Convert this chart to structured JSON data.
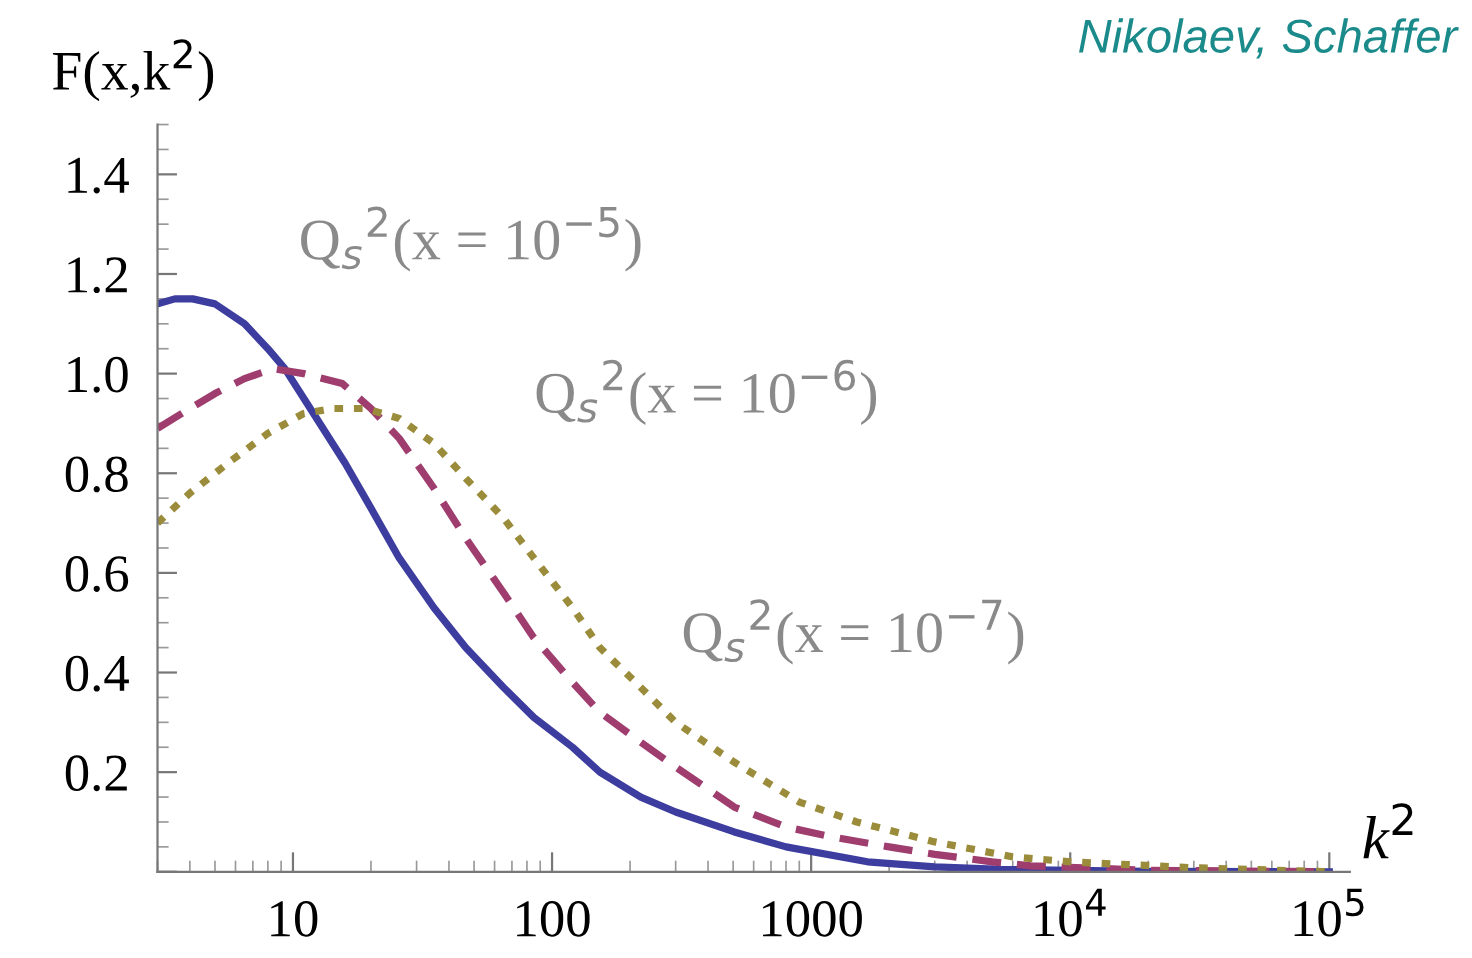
{
  "chart_data": {
    "type": "line",
    "ylabel": "F(x,k$^{2}$)",
    "xlabel": "k$^{2}$",
    "log": "x",
    "grid": false,
    "legend": false,
    "marker": "none",
    "xlim": [
      3,
      120000
    ],
    "ylim": [
      0,
      1.5
    ],
    "xticks": [
      10,
      100,
      1000,
      {
        "value": 10000,
        "label": "10$^{4}$"
      },
      {
        "value": 100000,
        "label": "10$^{5}$"
      }
    ],
    "yticks": [
      {
        "value": 0,
        "label": null
      },
      0.2,
      0.4,
      0.6,
      0.8,
      {
        "value": 1.0,
        "label": "1.0"
      },
      1.2,
      1.4
    ],
    "series": [
      {
        "color": "#3d3da0",
        "line_style": "solid",
        "x": [
          3,
          3.5,
          4.1,
          5,
          6.5,
          8,
          9.3,
          12,
          15.9,
          20,
          25.7,
          35,
          46.4,
          65,
          85,
          120,
          153,
          220,
          300,
          505,
          800,
          1650,
          3000,
          5400,
          20000,
          100000
        ],
        "values": [
          1.14,
          1.15,
          1.15,
          1.14,
          1.1,
          1.05,
          1.01,
          0.92,
          0.82,
          0.73,
          0.63,
          0.53,
          0.45,
          0.37,
          0.31,
          0.25,
          0.2,
          0.15,
          0.12,
          0.08,
          0.05,
          0.02,
          0.01,
          0.005,
          0.001,
          0
        ]
      },
      {
        "color": "#9e3d6e",
        "line_style": "dashed",
        "x": [
          3,
          4,
          5,
          6.5,
          8.4,
          11,
          15.5,
          20,
          25.7,
          35,
          46.4,
          65,
          85,
          120,
          153,
          220,
          300,
          505,
          800,
          1200,
          2000,
          3000,
          5000,
          7000,
          20000,
          100000
        ],
        "values": [
          0.89,
          0.93,
          0.96,
          0.99,
          1.01,
          1.0,
          0.98,
          0.93,
          0.87,
          0.77,
          0.67,
          0.56,
          0.47,
          0.38,
          0.32,
          0.26,
          0.21,
          0.13,
          0.09,
          0.07,
          0.05,
          0.035,
          0.02,
          0.012,
          0.003,
          0
        ]
      },
      {
        "color": "#9a8c3a",
        "line_style": "dotted",
        "x": [
          3,
          4,
          5.6,
          8,
          11,
          14.3,
          19,
          25.7,
          35,
          46.4,
          65,
          85,
          120,
          153,
          220,
          300,
          505,
          900,
          1500,
          3000,
          6000,
          10000,
          30000,
          100000
        ],
        "values": [
          0.7,
          0.76,
          0.82,
          0.88,
          0.92,
          0.93,
          0.93,
          0.91,
          0.86,
          0.79,
          0.71,
          0.63,
          0.53,
          0.45,
          0.37,
          0.3,
          0.22,
          0.14,
          0.1,
          0.06,
          0.03,
          0.02,
          0.008,
          0
        ]
      }
    ],
    "annotations": [
      "Q$_{s}$$^{2}$(x = 10$^{−5}$)",
      "Q$_{s}$$^{2}$(x = 10$^{−6}$)",
      "Q$_{s}$$^{2}$(x = 10$^{−7}$)",
      "Nikolaev, Schaffer"
    ]
  }
}
